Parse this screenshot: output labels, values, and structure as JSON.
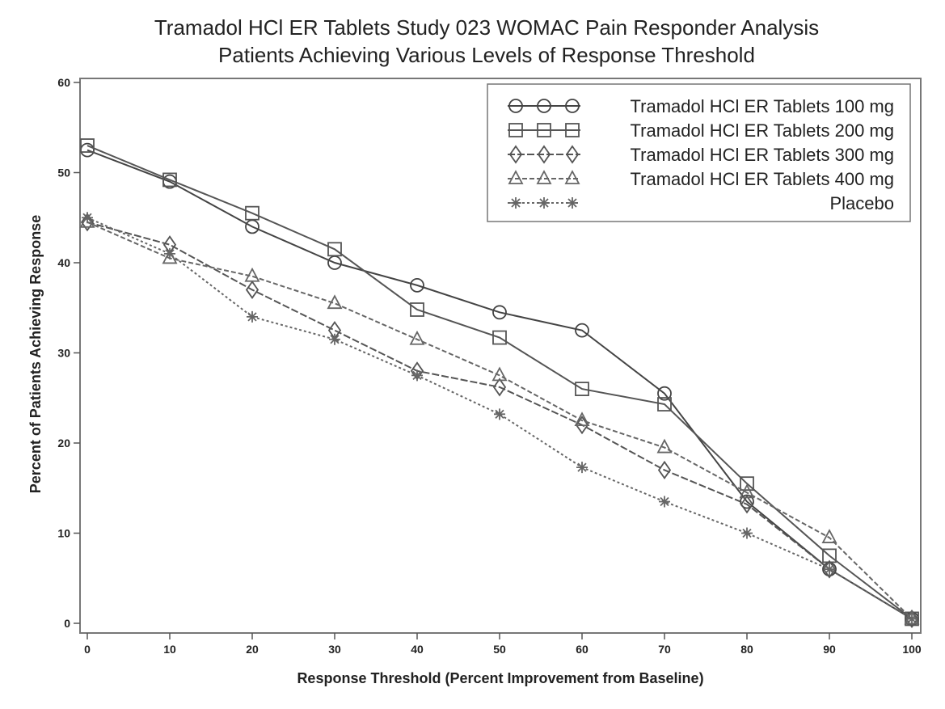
{
  "chart_data": {
    "type": "line",
    "title": "Tramadol HCl ER Tablets Study 023 WOMAC Pain Responder Analysis",
    "subtitle": "Patients Achieving Various Levels of Response Threshold",
    "xlabel": "Response Threshold (Percent Improvement from Baseline)",
    "ylabel": "Percent of Patients Achieving Response",
    "xlim": [
      0,
      100
    ],
    "ylim": [
      0,
      60
    ],
    "xticks": [
      "0",
      "10",
      "20",
      "30",
      "40",
      "50",
      "60",
      "70",
      "80",
      "90",
      "100"
    ],
    "yticks": [
      "0",
      "10",
      "20",
      "30",
      "40",
      "50",
      "60"
    ],
    "grid": false,
    "legend_position": "top-right",
    "x": [
      0,
      10,
      20,
      30,
      40,
      50,
      60,
      70,
      80,
      90,
      100
    ],
    "series": [
      {
        "name": "Tramadol HCl ER Tablets 100 mg",
        "marker": "circle",
        "dash": "solid",
        "color": "#444444",
        "values": [
          52.5,
          49,
          44,
          40,
          37.5,
          34.5,
          32.5,
          25.5,
          13.5,
          6,
          0.5
        ]
      },
      {
        "name": "Tramadol HCl ER Tablets 200 mg",
        "marker": "square",
        "dash": "solid",
        "color": "#555555",
        "values": [
          53,
          49.2,
          45.5,
          41.5,
          34.8,
          31.7,
          26,
          24.3,
          15.5,
          7.5,
          0.5
        ]
      },
      {
        "name": "Tramadol HCl ER Tablets 300 mg",
        "marker": "diamond",
        "dash": "long-dash",
        "color": "#555555",
        "values": [
          44.5,
          42,
          37,
          32.5,
          28,
          26.2,
          22,
          17,
          13.2,
          6,
          0.5
        ]
      },
      {
        "name": "Tramadol HCl ER Tablets 400 mg",
        "marker": "triangle",
        "dash": "dash",
        "color": "#666666",
        "values": [
          44.5,
          40.5,
          38.5,
          35.5,
          31.5,
          27.5,
          22.5,
          19.5,
          14.5,
          9.5,
          0.5
        ]
      },
      {
        "name": "Placebo",
        "marker": "star",
        "dash": "dot",
        "color": "#666666",
        "values": [
          45,
          41,
          34,
          31.5,
          27.5,
          23.2,
          17.3,
          13.5,
          10,
          6,
          0.5
        ]
      }
    ]
  }
}
